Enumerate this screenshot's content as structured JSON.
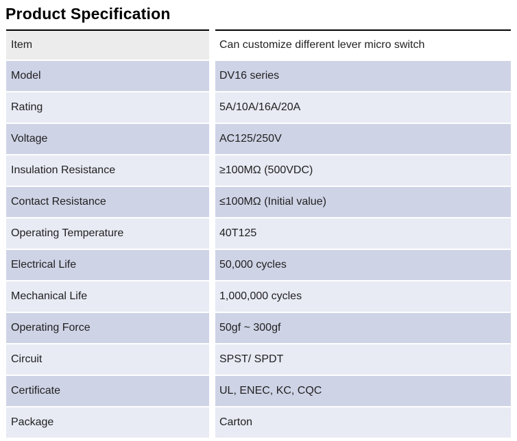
{
  "page": {
    "title": "Product Specification"
  },
  "table": {
    "colors": {
      "text": "#212121",
      "top_border": "#000000",
      "header_label_bg": "#ececec",
      "header_value_bg": "#ffffff",
      "row_dark_bg": "#cfd3e6",
      "row_light_bg": "#e8eaf4"
    },
    "rows": [
      {
        "label": "Item",
        "value": "Can customize different lever micro switch"
      },
      {
        "label": "Model",
        "value": "DV16 series"
      },
      {
        "label": "Rating",
        "value": "5A/10A/16A/20A"
      },
      {
        "label": "Voltage",
        "value": "AC125/250V"
      },
      {
        "label": "Insulation Resistance",
        "value": "≥100MΩ (500VDC)"
      },
      {
        "label": "Contact Resistance",
        "value": "≤100MΩ (Initial value)"
      },
      {
        "label": "Operating Temperature",
        "value": "40T125"
      },
      {
        "label": "Electrical Life",
        "value": "50,000 cycles"
      },
      {
        "label": "Mechanical Life",
        "value": "1,000,000 cycles"
      },
      {
        "label": "Operating Force",
        "value": "50gf ~ 300gf"
      },
      {
        "label": "Circuit",
        "value": "SPST/ SPDT"
      },
      {
        "label": "Certificate",
        "value": "UL, ENEC, KC, CQC"
      },
      {
        "label": "Package",
        "value": "Carton"
      }
    ]
  }
}
